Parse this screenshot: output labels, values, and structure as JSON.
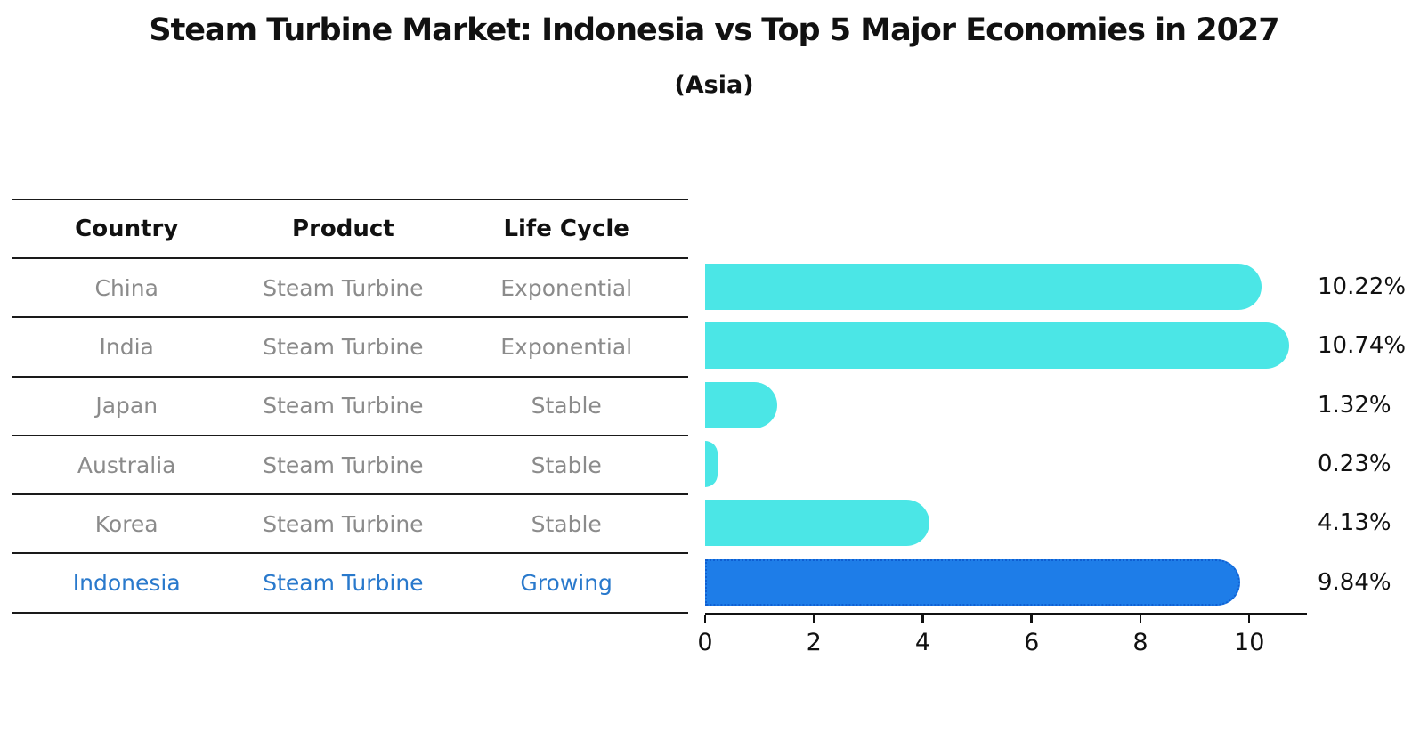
{
  "title": "Steam Turbine Market: Indonesia vs Top 5 Major Economies in 2027",
  "subtitle": "(Asia)",
  "table": {
    "headers": [
      "Country",
      "Product",
      "Life Cycle"
    ],
    "rows": [
      {
        "country": "China",
        "product": "Steam Turbine",
        "life_cycle": "Exponential",
        "highlight": false
      },
      {
        "country": "India",
        "product": "Steam Turbine",
        "life_cycle": "Exponential",
        "highlight": false
      },
      {
        "country": "Japan",
        "product": "Steam Turbine",
        "life_cycle": "Stable",
        "highlight": false
      },
      {
        "country": "Australia",
        "product": "Steam Turbine",
        "life_cycle": "Stable",
        "highlight": false
      },
      {
        "country": "Korea",
        "product": "Steam Turbine",
        "life_cycle": "Stable",
        "highlight": false
      },
      {
        "country": "Indonesia",
        "product": "Steam Turbine",
        "life_cycle": "Growing",
        "highlight": true
      }
    ]
  },
  "chart_data": {
    "type": "bar",
    "orientation": "horizontal",
    "categories": [
      "China",
      "India",
      "Japan",
      "Australia",
      "Korea",
      "Indonesia"
    ],
    "values": [
      10.22,
      10.74,
      1.32,
      0.23,
      4.13,
      9.84
    ],
    "value_labels": [
      "10.22%",
      "10.74%",
      "1.32%",
      "0.23%",
      "4.13%",
      "9.84%"
    ],
    "highlight_index": 5,
    "xlim": [
      0,
      11.06
    ],
    "xticks": [
      0,
      2,
      4,
      6,
      8,
      10
    ],
    "xtick_labels": [
      "0",
      "2",
      "4",
      "6",
      "8",
      "10"
    ],
    "grid": false,
    "legend": false,
    "title": "Steam Turbine Market: Indonesia vs Top 5 Major Economies in 2027",
    "subtitle": "(Asia)"
  },
  "colors": {
    "bar": "#4be6e6",
    "highlight_bar": "#1e7de8",
    "highlight_border": "#0f5fd2",
    "highlight_text": "#2979cc",
    "table_text": "#8b8b8b",
    "text": "#111111"
  }
}
